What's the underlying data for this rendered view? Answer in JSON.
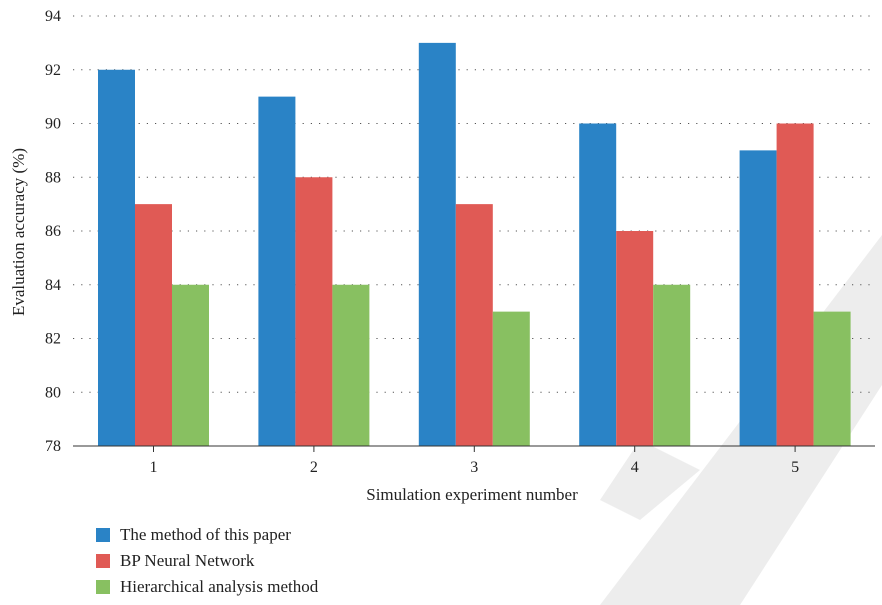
{
  "chart_data": {
    "type": "bar",
    "categories": [
      "1",
      "2",
      "3",
      "4",
      "5"
    ],
    "series": [
      {
        "name": "The method of this paper",
        "values": [
          92,
          91,
          93,
          90,
          89
        ],
        "color": "#2a83c6"
      },
      {
        "name": "BP Neural Network",
        "values": [
          87,
          88,
          87,
          86,
          90
        ],
        "color": "#e05a55"
      },
      {
        "name": "Hierarchical analysis method",
        "values": [
          84,
          84,
          83,
          84,
          83
        ],
        "color": "#88c061"
      }
    ],
    "title": "",
    "xlabel": "Simulation experiment number",
    "ylabel": "Evaluation accuracy (%)",
    "ylim": [
      78,
      94
    ],
    "yticks": [
      78,
      80,
      82,
      84,
      86,
      88,
      90,
      92,
      94
    ],
    "grid": "horizontal dotted",
    "legend_position": "bottom-left"
  },
  "watermark_color": "#e8e8e8"
}
